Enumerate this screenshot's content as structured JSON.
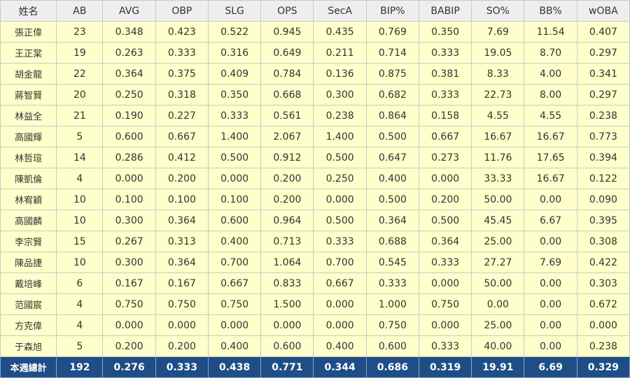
{
  "columns": [
    "姓名",
    "AB",
    "AVG",
    "OBP",
    "SLG",
    "OPS",
    "SecA",
    "BIP%",
    "BABIP",
    "SO%",
    "BB%",
    "wOBA"
  ],
  "rows": [
    [
      "張正偉",
      "23",
      "0.348",
      "0.423",
      "0.522",
      "0.945",
      "0.435",
      "0.769",
      "0.350",
      "7.69",
      "11.54",
      "0.407"
    ],
    [
      "王正棠",
      "19",
      "0.263",
      "0.333",
      "0.316",
      "0.649",
      "0.211",
      "0.714",
      "0.333",
      "19.05",
      "8.70",
      "0.297"
    ],
    [
      "胡金龍",
      "22",
      "0.364",
      "0.375",
      "0.409",
      "0.784",
      "0.136",
      "0.875",
      "0.381",
      "8.33",
      "4.00",
      "0.341"
    ],
    [
      "蔣智賢",
      "20",
      "0.250",
      "0.318",
      "0.350",
      "0.668",
      "0.300",
      "0.682",
      "0.333",
      "22.73",
      "8.00",
      "0.297"
    ],
    [
      "林益全",
      "21",
      "0.190",
      "0.227",
      "0.333",
      "0.561",
      "0.238",
      "0.864",
      "0.158",
      "4.55",
      "4.55",
      "0.238"
    ],
    [
      "高國輝",
      "5",
      "0.600",
      "0.667",
      "1.400",
      "2.067",
      "1.400",
      "0.500",
      "0.667",
      "16.67",
      "16.67",
      "0.773"
    ],
    [
      "林哲瑄",
      "14",
      "0.286",
      "0.412",
      "0.500",
      "0.912",
      "0.500",
      "0.647",
      "0.273",
      "11.76",
      "17.65",
      "0.394"
    ],
    [
      "陳凱倫",
      "4",
      "0.000",
      "0.200",
      "0.000",
      "0.200",
      "0.250",
      "0.400",
      "0.000",
      "33.33",
      "16.67",
      "0.122"
    ],
    [
      "林宥穎",
      "10",
      "0.100",
      "0.100",
      "0.100",
      "0.200",
      "0.000",
      "0.500",
      "0.200",
      "50.00",
      "0.00",
      "0.090"
    ],
    [
      "高國麟",
      "10",
      "0.300",
      "0.364",
      "0.600",
      "0.964",
      "0.500",
      "0.364",
      "0.500",
      "45.45",
      "6.67",
      "0.395"
    ],
    [
      "李宗賢",
      "15",
      "0.267",
      "0.313",
      "0.400",
      "0.713",
      "0.333",
      "0.688",
      "0.364",
      "25.00",
      "0.00",
      "0.308"
    ],
    [
      "陳品捷",
      "10",
      "0.300",
      "0.364",
      "0.700",
      "1.064",
      "0.700",
      "0.545",
      "0.333",
      "27.27",
      "7.69",
      "0.422"
    ],
    [
      "戴培峰",
      "6",
      "0.167",
      "0.167",
      "0.667",
      "0.833",
      "0.667",
      "0.333",
      "0.000",
      "50.00",
      "0.00",
      "0.303"
    ],
    [
      "范國宸",
      "4",
      "0.750",
      "0.750",
      "0.750",
      "1.500",
      "0.000",
      "1.000",
      "0.750",
      "0.00",
      "0.00",
      "0.672"
    ],
    [
      "方克偉",
      "4",
      "0.000",
      "0.000",
      "0.000",
      "0.000",
      "0.000",
      "0.750",
      "0.000",
      "25.00",
      "0.00",
      "0.000"
    ],
    [
      "于森旭",
      "5",
      "0.200",
      "0.200",
      "0.400",
      "0.600",
      "0.400",
      "0.600",
      "0.333",
      "40.00",
      "0.00",
      "0.238"
    ]
  ],
  "total": [
    "本週總計",
    "192",
    "0.276",
    "0.333",
    "0.438",
    "0.771",
    "0.344",
    "0.686",
    "0.319",
    "19.91",
    "6.69",
    "0.329"
  ],
  "colors": {
    "header_bg": "#eeeeee",
    "row_bg": "#ffffcc",
    "total_bg": "#1f4e86",
    "total_text": "#ffffff",
    "border": "#c9c9c9"
  }
}
